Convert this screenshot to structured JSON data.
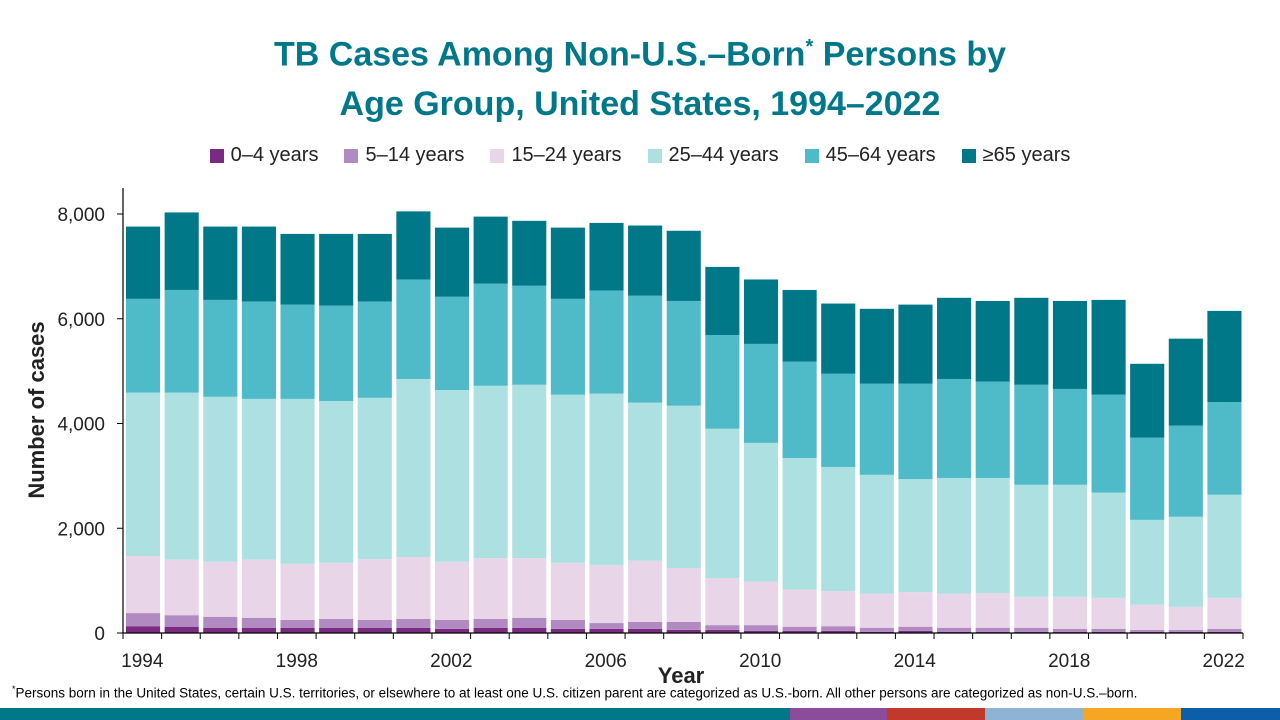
{
  "title_line1_pre": "TB Cases Among Non-U.S.–Born",
  "title_sup": "*",
  "title_line1_post": " Persons by",
  "title_line2": "Age Group, United States, 1994–2022",
  "footnote_marker": "*",
  "footnote": "Persons born in the United States, certain U.S. territories, or elsewhere to at least one U.S. citizen parent are categorized as U.S.-born. All other persons are categorized as non-U.S.–born.",
  "footer_colors": [
    "#00788a",
    "#8b4c9b",
    "#c0392b",
    "#8fb3d4",
    "#f5a623",
    "#0d5ea8"
  ],
  "chart_data": {
    "type": "bar",
    "stacked": true,
    "xlabel": "Year",
    "ylabel": "Number of cases",
    "ylim": [
      0,
      8500
    ],
    "yticks": [
      0,
      2000,
      4000,
      6000,
      8000
    ],
    "ytick_labels": [
      "0",
      "2,000",
      "4,000",
      "6,000",
      "8,000"
    ],
    "xtick_labels": [
      "1994",
      "1998",
      "2002",
      "2006",
      "2010",
      "2014",
      "2018",
      "2022"
    ],
    "legend_position": "top",
    "grid": false,
    "categories": [
      1994,
      1995,
      1996,
      1997,
      1998,
      1999,
      2000,
      2001,
      2002,
      2003,
      2004,
      2005,
      2006,
      2007,
      2008,
      2009,
      2010,
      2011,
      2012,
      2013,
      2014,
      2015,
      2016,
      2017,
      2018,
      2019,
      2020,
      2021,
      2022
    ],
    "series": [
      {
        "name": "0–4 years",
        "color": "#7b2a82",
        "values": [
          130,
          120,
          100,
          100,
          100,
          100,
          100,
          100,
          80,
          100,
          100,
          80,
          80,
          80,
          60,
          60,
          40,
          40,
          40,
          20,
          40,
          20,
          20,
          20,
          20,
          20,
          20,
          20,
          20
        ]
      },
      {
        "name": "5–14 years",
        "color": "#b18ac2",
        "values": [
          250,
          220,
          210,
          190,
          150,
          170,
          150,
          170,
          170,
          170,
          190,
          170,
          110,
          130,
          150,
          90,
          110,
          80,
          90,
          80,
          80,
          80,
          80,
          80,
          60,
          60,
          40,
          40,
          60
        ]
      },
      {
        "name": "15–24 years",
        "color": "#e8d5e8",
        "values": [
          1090,
          1060,
          1050,
          1110,
          1070,
          1070,
          1160,
          1180,
          1110,
          1160,
          1140,
          1090,
          1110,
          1170,
          1030,
          900,
          830,
          710,
          670,
          650,
          660,
          650,
          660,
          590,
          610,
          590,
          480,
          440,
          590
        ]
      },
      {
        "name": "25–44 years",
        "color": "#ade1e1",
        "values": [
          3120,
          3190,
          3150,
          3070,
          3150,
          3090,
          3080,
          3400,
          3280,
          3290,
          3310,
          3210,
          3270,
          3020,
          3100,
          2850,
          2650,
          2510,
          2370,
          2270,
          2160,
          2210,
          2200,
          2140,
          2140,
          2010,
          1620,
          1720,
          1970
        ]
      },
      {
        "name": "45–64 years",
        "color": "#4fbac8",
        "values": [
          1790,
          1960,
          1850,
          1860,
          1800,
          1820,
          1840,
          1900,
          1780,
          1950,
          1890,
          1830,
          1970,
          2040,
          2000,
          1790,
          1890,
          1840,
          1780,
          1740,
          1820,
          1890,
          1840,
          1910,
          1830,
          1870,
          1570,
          1740,
          1770
        ]
      },
      {
        "name": "≥65 years",
        "color": "#007888",
        "values": [
          1380,
          1480,
          1400,
          1430,
          1350,
          1370,
          1290,
          1300,
          1320,
          1280,
          1240,
          1360,
          1290,
          1340,
          1340,
          1300,
          1230,
          1370,
          1340,
          1430,
          1510,
          1550,
          1540,
          1660,
          1680,
          1810,
          1410,
          1660,
          1740
        ]
      }
    ]
  }
}
